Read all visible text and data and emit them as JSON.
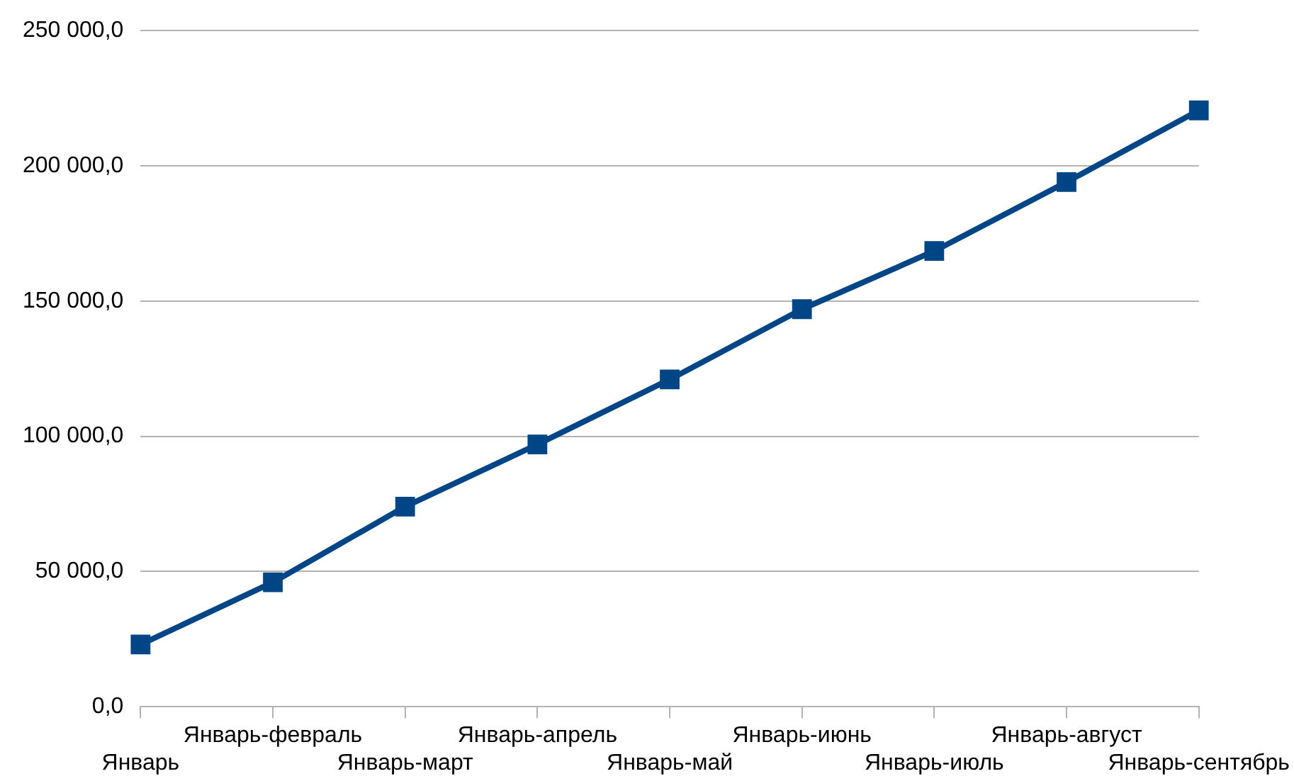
{
  "chart_data": {
    "type": "line",
    "categories": [
      "Январь",
      "Январь-февраль",
      "Январь-март",
      "Январь-апрель",
      "Январь-май",
      "Январь-июнь",
      "Январь-июль",
      "Январь-август",
      "Январь-сентябрь"
    ],
    "series": [
      {
        "color": "#004586",
        "values": [
          23000,
          46000,
          74000,
          97000,
          121000,
          147000,
          168500,
          194000,
          220500
        ]
      }
    ],
    "ylim": [
      0,
      250000
    ],
    "yticks": [
      {
        "value": 0,
        "label": "0,0"
      },
      {
        "value": 50000,
        "label": "50 000,0"
      },
      {
        "value": 100000,
        "label": "100 000,0"
      },
      {
        "value": 150000,
        "label": "150 000,0"
      },
      {
        "value": 200000,
        "label": "200 000,0"
      },
      {
        "value": 250000,
        "label": "250 000,0"
      }
    ],
    "grid": "y",
    "legend": false,
    "marker": "square",
    "line_style": "solid"
  }
}
